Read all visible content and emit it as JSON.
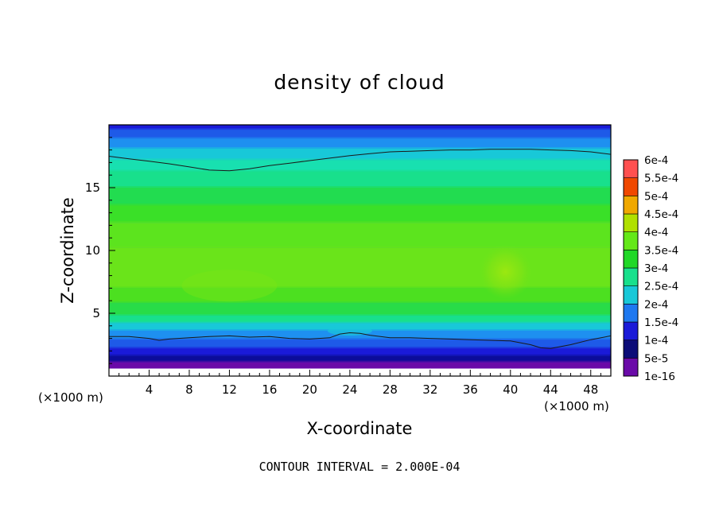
{
  "chart_data": {
    "type": "heatmap",
    "title": "density of cloud",
    "xlabel": "X-coordinate",
    "ylabel": "Z-coordinate",
    "x_unit": "(×1000 m)",
    "z_unit": "(×1000 m)",
    "xlim": [
      0,
      50
    ],
    "ylim": [
      0,
      20
    ],
    "x_ticks": [
      4,
      8,
      12,
      16,
      20,
      24,
      28,
      32,
      36,
      40,
      44,
      48
    ],
    "y_ticks": [
      5,
      10,
      15
    ],
    "colorbar": {
      "levels": [
        "1e-16",
        "5e-5",
        "1e-4",
        "1.5e-4",
        "2e-4",
        "2.5e-4",
        "3e-4",
        "3.5e-4",
        "4e-4",
        "4.5e-4",
        "5e-4",
        "5.5e-4",
        "6e-4"
      ],
      "colors": [
        "#6a0aa8",
        "#0c0c78",
        "#1a1ad8",
        "#1e78f0",
        "#18c8d8",
        "#18e08c",
        "#20d828",
        "#64e818",
        "#b0e000",
        "#f0a800",
        "#f04800",
        "#ff5050",
        "#ffa0a0"
      ]
    },
    "contour_lines": [
      {
        "value": "1e-4",
        "x": [
          0,
          2,
          4,
          5,
          6,
          8,
          10,
          12,
          14,
          16,
          18,
          20,
          22,
          23,
          24,
          25,
          26,
          28,
          30,
          32,
          34,
          36,
          38,
          40,
          42,
          43,
          44,
          46,
          48,
          50
        ],
        "z": [
          3.15,
          3.15,
          3.0,
          2.85,
          2.95,
          3.05,
          3.15,
          3.2,
          3.1,
          3.15,
          3.0,
          2.95,
          3.05,
          3.35,
          3.45,
          3.4,
          3.25,
          3.05,
          3.05,
          3.0,
          2.95,
          2.9,
          2.85,
          2.8,
          2.5,
          2.25,
          2.2,
          2.5,
          2.9,
          3.2
        ]
      },
      {
        "value": "2e-4",
        "x": [
          0,
          2,
          4,
          6,
          8,
          10,
          12,
          14,
          16,
          18,
          20,
          22,
          24,
          26,
          28,
          30,
          32,
          34,
          36,
          38,
          40,
          42,
          44,
          46,
          48,
          50
        ],
        "z": [
          17.5,
          17.3,
          17.1,
          16.9,
          16.65,
          16.4,
          16.35,
          16.5,
          16.75,
          16.95,
          17.15,
          17.35,
          17.55,
          17.7,
          17.85,
          17.9,
          17.95,
          18.0,
          18.0,
          18.05,
          18.05,
          18.05,
          18.0,
          17.95,
          17.85,
          17.65
        ]
      }
    ],
    "field_features": [
      {
        "region": "upper band",
        "x": [
          0,
          50
        ],
        "z": [
          18.5,
          20
        ],
        "range": [
          "5e-5",
          "1.5e-4"
        ]
      },
      {
        "region": "interior",
        "x": [
          0,
          50
        ],
        "z": [
          5,
          16
        ],
        "range": [
          "2.5e-4",
          "3.5e-4"
        ]
      },
      {
        "region": "local maximum",
        "x": [
          38,
          40
        ],
        "z": [
          7,
          10
        ],
        "range": [
          "3.5e-4",
          "4e-4"
        ]
      },
      {
        "region": "surface layer",
        "x": [
          0,
          50
        ],
        "z": [
          0.5,
          1.2
        ],
        "range": [
          "1e-16",
          "5e-5"
        ]
      }
    ]
  },
  "footer_note": "CONTOUR INTERVAL = 2.000E-04"
}
